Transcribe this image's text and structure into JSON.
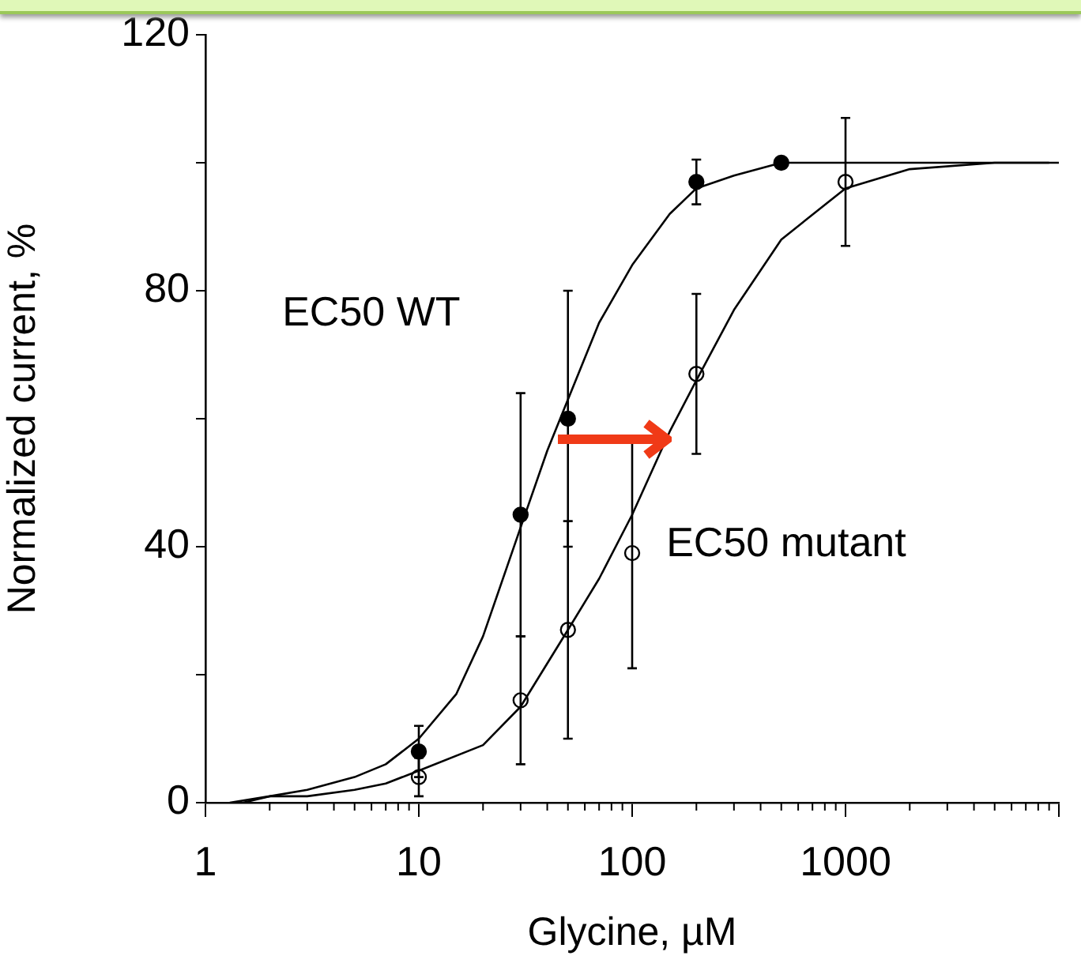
{
  "chart_data": {
    "type": "scatter",
    "xlabel": "Glycine, µM",
    "ylabel": "Normalized current, %",
    "log": "x",
    "xlim": [
      1,
      10000
    ],
    "xticks": [
      1,
      10,
      100,
      1000,
      {
        "value": 10000,
        "label": null
      }
    ],
    "ylim": [
      0,
      120
    ],
    "yticks": [
      0,
      {
        "value": 20,
        "label": null
      },
      40,
      {
        "value": 60,
        "label": null
      },
      80,
      {
        "value": 100,
        "label": null
      },
      120
    ],
    "grid": false,
    "legend": false,
    "marker": "circle",
    "annotations": [
      "EC50 WT",
      "EC50 mutant"
    ],
    "series": [
      {
        "type": "line",
        "color": "#000000",
        "marker": "none",
        "x": [
          1.3,
          2,
          3,
          5,
          7,
          10,
          15,
          20,
          30,
          40,
          50,
          70,
          100,
          150,
          200,
          300,
          500,
          1000,
          10000
        ],
        "values": [
          0,
          1,
          2,
          4,
          6,
          10,
          17,
          26,
          43,
          55,
          63,
          75,
          84,
          92,
          96,
          98,
          100,
          100,
          100
        ]
      },
      {
        "type": "line",
        "color": "#000000",
        "marker": "none",
        "x": [
          1.5,
          2,
          3,
          5,
          7,
          10,
          20,
          30,
          50,
          70,
          100,
          150,
          200,
          300,
          500,
          1000,
          2000,
          5000,
          9000
        ],
        "values": [
          0,
          1,
          1,
          2,
          3,
          5,
          9,
          15,
          27,
          35,
          45,
          58,
          66,
          77,
          88,
          96,
          99,
          100,
          100
        ]
      },
      {
        "type": "scatter",
        "color": "#000000",
        "x": [
          10,
          30,
          50,
          200,
          500
        ],
        "values": [
          8,
          45,
          60,
          97,
          100
        ],
        "errors": [
          4,
          19,
          20,
          3.5,
          null
        ]
      },
      {
        "type": "scatter",
        "color": "#000000",
        "x": [
          10,
          30,
          50,
          100,
          200,
          1000
        ],
        "values": [
          4,
          16,
          27,
          39,
          67,
          97
        ],
        "errors": [
          3,
          10,
          17,
          18,
          12.5,
          10
        ]
      }
    ]
  }
}
